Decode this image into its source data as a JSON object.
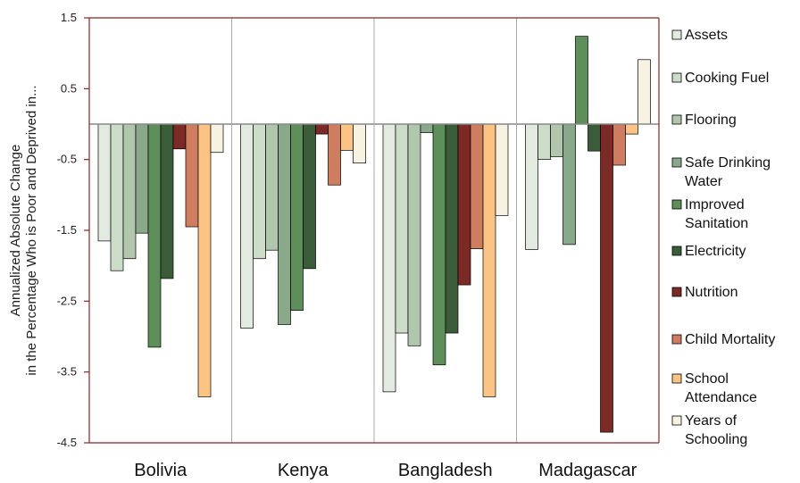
{
  "chart_data": {
    "type": "bar",
    "title": "",
    "ylabel_lines": [
      "Annualized Absolute Change",
      "in the Percentage Who is Poor and Deprived in..."
    ],
    "ylim": [
      -4.5,
      1.5
    ],
    "yticks": [
      1.5,
      0.5,
      -0.5,
      -1.5,
      -2.5,
      -3.5,
      -4.5
    ],
    "ytick_labels": [
      "1.5",
      "0.5",
      "-0.5",
      "-1.5",
      "-2.5",
      "-3.5",
      "-4.5"
    ],
    "grid": false,
    "legend_position": "right",
    "categories": [
      "Bolivia",
      "Kenya",
      "Bangladesh",
      "Madagascar"
    ],
    "series": [
      {
        "name": "Assets",
        "legend_lines": [
          "Assets"
        ],
        "color": "#e3ebe1",
        "values": [
          -1.65,
          -2.88,
          -3.78,
          -1.77
        ]
      },
      {
        "name": "Cooking Fuel",
        "legend_lines": [
          "Cooking Fuel"
        ],
        "color": "#cddbc9",
        "values": [
          -2.07,
          -1.9,
          -2.95,
          -0.5
        ]
      },
      {
        "name": "Flooring",
        "legend_lines": [
          "Flooring"
        ],
        "color": "#b2c6ae",
        "values": [
          -1.9,
          -1.78,
          -3.13,
          -0.46
        ]
      },
      {
        "name": "Safe Drinking Water",
        "legend_lines": [
          "Safe Drinking",
          "Water"
        ],
        "color": "#8aa88a",
        "values": [
          -1.54,
          -2.83,
          -0.12,
          -1.7
        ]
      },
      {
        "name": "Improved Sanitation",
        "legend_lines": [
          "Improved",
          "Sanitation"
        ],
        "color": "#5e8f5a",
        "values": [
          -3.15,
          -2.63,
          -3.4,
          1.24
        ]
      },
      {
        "name": "Electricity",
        "legend_lines": [
          "Electricity"
        ],
        "color": "#3a5c38",
        "values": [
          -2.18,
          -2.04,
          -2.95,
          -0.38
        ]
      },
      {
        "name": "Nutrition",
        "legend_lines": [
          "Nutrition"
        ],
        "color": "#7c2a26",
        "values": [
          -0.35,
          -0.14,
          -2.27,
          -4.35
        ]
      },
      {
        "name": "Child Mortality",
        "legend_lines": [
          "Child Mortality"
        ],
        "color": "#cf7d60",
        "values": [
          -1.45,
          -0.86,
          -1.76,
          -0.58
        ]
      },
      {
        "name": "School Attendance",
        "legend_lines": [
          "School",
          "Attendance"
        ],
        "color": "#fbc484",
        "values": [
          -3.85,
          -0.37,
          -3.85,
          -0.14
        ]
      },
      {
        "name": "Years of Schooling",
        "legend_lines": [
          "Years of",
          "Schooling"
        ],
        "color": "#f8f2e2",
        "values": [
          -0.4,
          -0.55,
          -1.29,
          0.91
        ]
      }
    ]
  }
}
